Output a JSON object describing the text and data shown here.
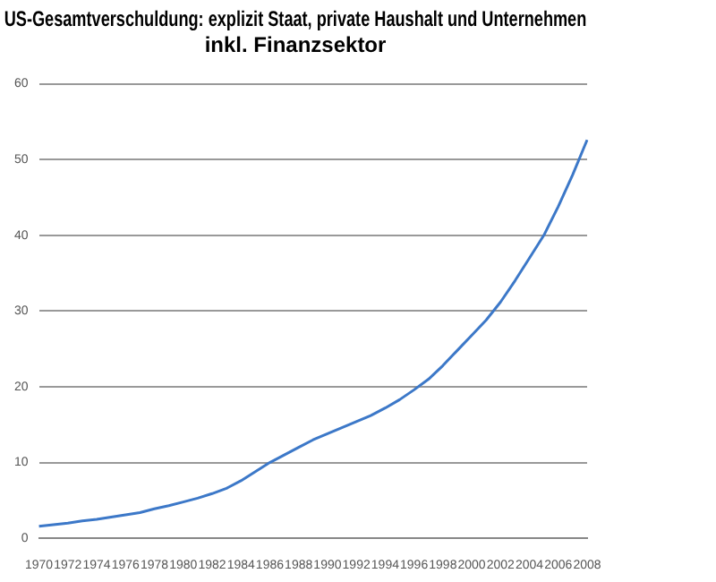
{
  "chart_data": {
    "type": "line",
    "title": [
      "US-Gesamtverschuldung: explizit Staat, private Haushalt und Unternehmen",
      "inkl. Finanzsektor"
    ],
    "categories": [
      "1970",
      null,
      "1972",
      null,
      "1974",
      null,
      "1976",
      null,
      "1978",
      null,
      "1980",
      null,
      "1982",
      null,
      "1984",
      null,
      "1986",
      null,
      "1988",
      null,
      "1990",
      null,
      "1992",
      null,
      "1994",
      null,
      "1996",
      null,
      "1998",
      null,
      "2000",
      null,
      "2002",
      null,
      "2004",
      null,
      "2006",
      null,
      "2008"
    ],
    "series": [
      {
        "color": "#3c78c8",
        "values": [
          1.6,
          1.8,
          2.0,
          2.3,
          2.5,
          2.8,
          3.1,
          3.4,
          3.9,
          4.3,
          4.8,
          5.3,
          5.9,
          6.6,
          7.6,
          8.8,
          10.0,
          11.0,
          12.0,
          13.0,
          13.8,
          14.6,
          15.4,
          16.2,
          17.2,
          18.3,
          19.6,
          21.0,
          22.8,
          24.8,
          26.8,
          28.8,
          31.2,
          34.0,
          37.0,
          40.0,
          43.8,
          48.0,
          52.6
        ]
      }
    ],
    "ylim": [
      0,
      60
    ],
    "yticks": [
      0,
      10,
      20,
      30,
      40,
      50,
      60
    ],
    "grid": "y",
    "marker": "none",
    "line_style": "solid",
    "legend": false
  }
}
